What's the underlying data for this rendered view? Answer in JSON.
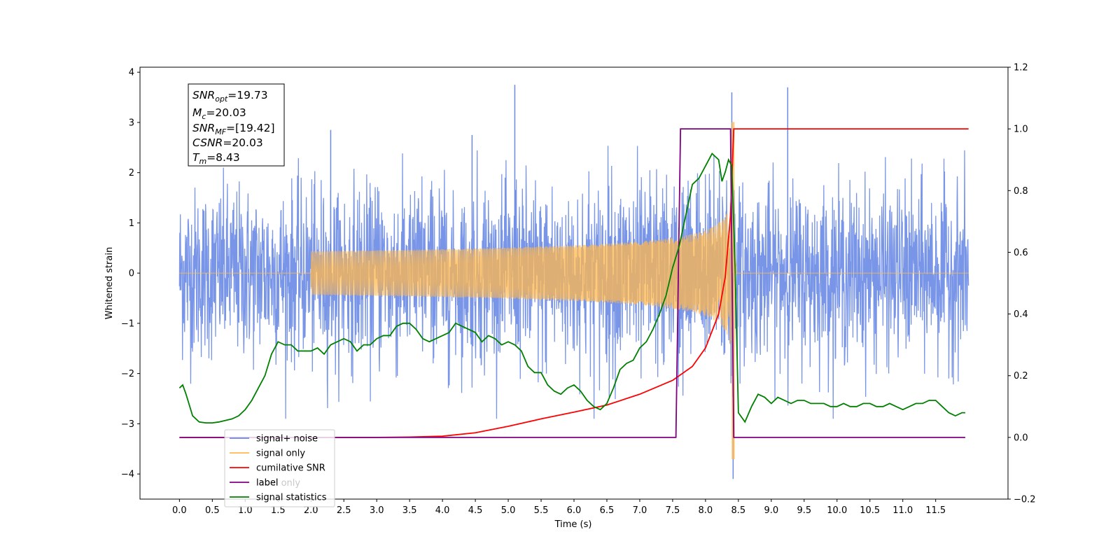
{
  "chart_data": {
    "type": "line",
    "xlabel": "Time (s)",
    "ylabel": "Whitened strain",
    "xlim": [
      -0.6,
      12.6
    ],
    "ylim": [
      -4.5,
      4.1
    ],
    "y2lim": [
      -0.2,
      1.2
    ],
    "x_ticks": [
      "0.0",
      "0.5",
      "1.0",
      "1.5",
      "2.0",
      "2.5",
      "3.0",
      "3.5",
      "4.0",
      "4.5",
      "5.0",
      "5.5",
      "6.0",
      "6.5",
      "7.0",
      "7.5",
      "8.0",
      "8.5",
      "9.0",
      "9.5",
      "10.0",
      "10.5",
      "11.0",
      "11.5"
    ],
    "y_ticks": [
      "4",
      "3",
      "2",
      "1",
      "0",
      "−1",
      "−2",
      "−3",
      "−4"
    ],
    "y2_ticks": [
      "1.2",
      "1.0",
      "0.8",
      "0.6",
      "0.4",
      "0.2",
      "0.0",
      "−0.2"
    ],
    "legend": {
      "location": "lower-left",
      "entries": [
        {
          "label": "signal+ noise",
          "color": "#6a8ae6"
        },
        {
          "label": "signal only",
          "color": "#ffb84d"
        },
        {
          "label": "cumilative SNR",
          "color": "#ff0000"
        },
        {
          "label": "label",
          "color": "#800080"
        },
        {
          "label": "signal statistics",
          "color": "#008000"
        }
      ],
      "occluded_text": "label only"
    },
    "annotation": [
      {
        "base": "SNR",
        "sub": "opt",
        "value": "=19.73"
      },
      {
        "base": "M",
        "sub": "c",
        "value": "=20.03"
      },
      {
        "base": "SNR",
        "sub": "MF",
        "value": "=[19.42]"
      },
      {
        "base": "CSNR",
        "sub": "",
        "value": "=20.03"
      },
      {
        "base": "T",
        "sub": "m",
        "value": "=8.43"
      }
    ],
    "series": [
      {
        "name": "signal+ noise",
        "axis": "left",
        "description_values": {
          "t_start": 0.0,
          "t_end": 12.0,
          "noise_std": 0.8,
          "peak_max": 3.75,
          "peak_min": -4.1
        },
        "spikes": [
          [
            5.1,
            3.75
          ],
          [
            8.4,
            3.6
          ],
          [
            9.25,
            3.7
          ],
          [
            8.42,
            -4.1
          ],
          [
            2.3,
            2.85
          ],
          [
            7.6,
            -1.6
          ],
          [
            4.45,
            2.75
          ]
        ]
      },
      {
        "name": "signal only",
        "axis": "left",
        "chirp": {
          "t_start": 2.0,
          "t_merge": 8.43,
          "peak_amplitude": 3.0,
          "min_amplitude": -3.7
        }
      },
      {
        "name": "cumilative SNR",
        "axis": "right",
        "x": [
          0.0,
          3.0,
          3.5,
          4.0,
          4.5,
          5.0,
          5.5,
          6.0,
          6.5,
          7.0,
          7.5,
          7.8,
          8.0,
          8.2,
          8.3,
          8.38,
          8.43,
          8.45,
          12.0
        ],
        "y": [
          0.0,
          0.0,
          0.001,
          0.004,
          0.015,
          0.036,
          0.06,
          0.082,
          0.105,
          0.14,
          0.185,
          0.23,
          0.29,
          0.4,
          0.52,
          0.72,
          1.0,
          1.0,
          1.0
        ]
      },
      {
        "name": "label",
        "axis": "right",
        "x": [
          0.0,
          7.55,
          7.62,
          8.38,
          8.43,
          11.95
        ],
        "y": [
          0.0,
          0.0,
          1.0,
          1.0,
          0.0,
          0.0
        ]
      },
      {
        "name": "signal statistics",
        "axis": "right",
        "x": [
          0.0,
          0.05,
          0.1,
          0.2,
          0.3,
          0.4,
          0.5,
          0.6,
          0.7,
          0.8,
          0.9,
          1.0,
          1.1,
          1.2,
          1.3,
          1.4,
          1.5,
          1.6,
          1.7,
          1.8,
          1.9,
          2.0,
          2.1,
          2.2,
          2.3,
          2.4,
          2.5,
          2.6,
          2.7,
          2.8,
          2.9,
          3.0,
          3.1,
          3.2,
          3.3,
          3.4,
          3.5,
          3.6,
          3.7,
          3.8,
          3.9,
          4.0,
          4.1,
          4.2,
          4.3,
          4.4,
          4.5,
          4.6,
          4.7,
          4.8,
          4.9,
          5.0,
          5.1,
          5.2,
          5.3,
          5.4,
          5.5,
          5.6,
          5.7,
          5.8,
          5.9,
          6.0,
          6.1,
          6.2,
          6.3,
          6.4,
          6.5,
          6.6,
          6.7,
          6.8,
          6.9,
          7.0,
          7.1,
          7.2,
          7.3,
          7.4,
          7.5,
          7.6,
          7.7,
          7.8,
          7.9,
          8.0,
          8.1,
          8.2,
          8.25,
          8.3,
          8.35,
          8.4,
          8.45,
          8.5,
          8.6,
          8.7,
          8.8,
          8.9,
          9.0,
          9.1,
          9.2,
          9.3,
          9.4,
          9.5,
          9.6,
          9.7,
          9.8,
          9.9,
          10.0,
          10.1,
          10.2,
          10.3,
          10.4,
          10.5,
          10.6,
          10.7,
          10.8,
          10.9,
          11.0,
          11.1,
          11.2,
          11.3,
          11.4,
          11.5,
          11.6,
          11.7,
          11.8,
          11.9,
          11.95
        ],
        "y": [
          0.16,
          0.17,
          0.14,
          0.07,
          0.05,
          0.047,
          0.047,
          0.05,
          0.055,
          0.06,
          0.07,
          0.09,
          0.12,
          0.16,
          0.2,
          0.27,
          0.31,
          0.3,
          0.3,
          0.28,
          0.28,
          0.28,
          0.29,
          0.27,
          0.3,
          0.31,
          0.32,
          0.31,
          0.28,
          0.3,
          0.3,
          0.32,
          0.33,
          0.33,
          0.36,
          0.37,
          0.37,
          0.35,
          0.32,
          0.31,
          0.32,
          0.33,
          0.34,
          0.37,
          0.36,
          0.35,
          0.34,
          0.31,
          0.33,
          0.32,
          0.3,
          0.31,
          0.3,
          0.28,
          0.23,
          0.21,
          0.21,
          0.17,
          0.15,
          0.14,
          0.16,
          0.17,
          0.15,
          0.12,
          0.1,
          0.09,
          0.11,
          0.16,
          0.22,
          0.24,
          0.25,
          0.29,
          0.31,
          0.35,
          0.4,
          0.46,
          0.55,
          0.62,
          0.72,
          0.82,
          0.84,
          0.88,
          0.92,
          0.9,
          0.83,
          0.86,
          0.9,
          0.88,
          0.55,
          0.08,
          0.05,
          0.1,
          0.14,
          0.13,
          0.11,
          0.13,
          0.12,
          0.11,
          0.12,
          0.12,
          0.11,
          0.11,
          0.11,
          0.1,
          0.1,
          0.11,
          0.1,
          0.1,
          0.11,
          0.11,
          0.1,
          0.1,
          0.11,
          0.1,
          0.09,
          0.1,
          0.11,
          0.11,
          0.12,
          0.12,
          0.1,
          0.08,
          0.07,
          0.08,
          0.08
        ]
      }
    ]
  }
}
